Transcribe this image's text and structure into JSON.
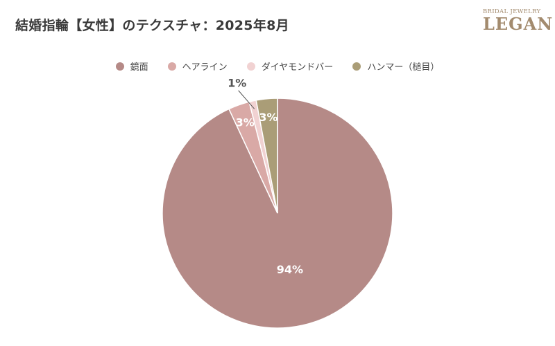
{
  "title": "結婚指輪【女性】のテクスチャ：2025年8月",
  "logo": {
    "top": "BRIDAL JEWELRY",
    "main": "LEGAN"
  },
  "chart_data": {
    "type": "pie",
    "title": "結婚指輪【女性】のテクスチャ：2025年8月",
    "legend_position": "top",
    "slices": [
      {
        "label": "鏡面",
        "value": 94,
        "display": "94%",
        "color": "#b58a87"
      },
      {
        "label": "ヘアライン",
        "value": 3,
        "display": "3%",
        "color": "#d9a9a6"
      },
      {
        "label": "ダイヤモンドバー",
        "value": 1,
        "display": "1%",
        "color": "#f1d2d2"
      },
      {
        "label": "ハンマー（槌目）",
        "value": 3,
        "display": "3%",
        "color": "#aa9d77"
      }
    ]
  }
}
